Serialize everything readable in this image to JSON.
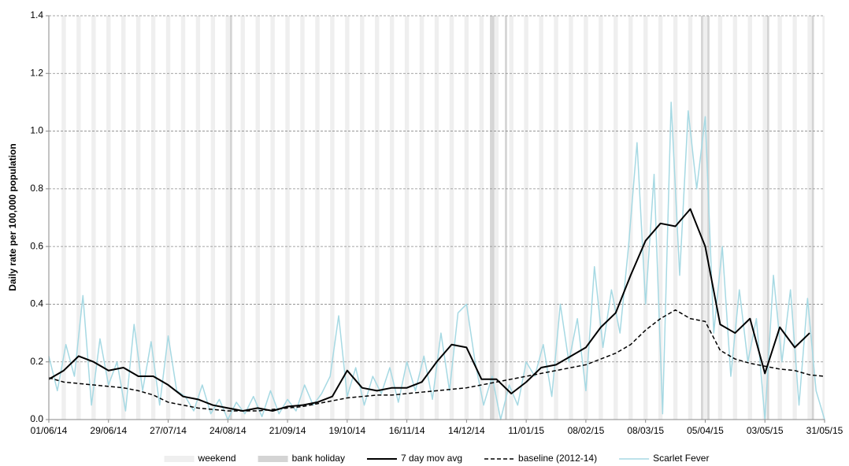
{
  "chart_data": {
    "type": "line",
    "ylabel": "Daily rate per 100,000 population",
    "xlim": [
      0,
      364
    ],
    "xticks": [
      {
        "value": 0,
        "label": "01/06/14"
      },
      {
        "value": 28,
        "label": "29/06/14"
      },
      {
        "value": 56,
        "label": "27/07/14"
      },
      {
        "value": 84,
        "label": "24/08/14"
      },
      {
        "value": 112,
        "label": "21/09/14"
      },
      {
        "value": 140,
        "label": "19/10/14"
      },
      {
        "value": 168,
        "label": "16/11/14"
      },
      {
        "value": 196,
        "label": "14/12/14"
      },
      {
        "value": 224,
        "label": "11/01/15"
      },
      {
        "value": 252,
        "label": "08/02/15"
      },
      {
        "value": 280,
        "label": "08/03/15"
      },
      {
        "value": 308,
        "label": "05/04/15"
      },
      {
        "value": 336,
        "label": "03/05/15"
      },
      {
        "value": 364,
        "label": "31/05/15"
      }
    ],
    "ylim": [
      0,
      1.4
    ],
    "yticks": [
      {
        "value": 0,
        "label": "0.0"
      },
      0.2,
      0.4,
      0.6,
      0.8,
      {
        "value": 1,
        "label": "1.0"
      },
      1.2,
      1.4
    ],
    "grid": true,
    "weekends": {
      "name": "weekend",
      "color": "#efefef",
      "width": 2,
      "x": [
        6,
        13,
        20,
        27,
        34,
        41,
        48,
        55,
        62,
        69,
        76,
        83,
        90,
        97,
        104,
        111,
        118,
        125,
        132,
        139,
        146,
        153,
        160,
        167,
        174,
        181,
        188,
        195,
        202,
        209,
        216,
        223,
        230,
        237,
        244,
        251,
        258,
        265,
        272,
        279,
        286,
        293,
        300,
        307,
        314,
        321,
        328,
        335,
        342,
        349,
        356,
        363
      ]
    },
    "bank_holidays": {
      "name": "bank holiday",
      "color": "#d4d4d4",
      "width": 1,
      "x": [
        85,
        207,
        208,
        214,
        306,
        309,
        337,
        358
      ]
    },
    "series": [
      {
        "name": "7 day mov avg",
        "color": "#000000",
        "width": 2,
        "dash": false,
        "x": [
          0,
          7,
          14,
          21,
          28,
          35,
          42,
          49,
          56,
          63,
          70,
          77,
          84,
          91,
          98,
          105,
          112,
          119,
          126,
          133,
          140,
          147,
          154,
          161,
          168,
          175,
          182,
          189,
          196,
          203,
          210,
          217,
          224,
          231,
          238,
          245,
          252,
          259,
          266,
          273,
          280,
          287,
          294,
          301,
          308,
          315,
          322,
          329,
          336,
          343,
          350,
          357,
          364
        ],
        "values": [
          0.14,
          0.17,
          0.22,
          0.2,
          0.17,
          0.18,
          0.15,
          0.15,
          0.12,
          0.08,
          0.07,
          0.05,
          0.04,
          0.03,
          0.04,
          0.03,
          0.045,
          0.05,
          0.06,
          0.08,
          0.17,
          0.11,
          0.1,
          0.11,
          0.11,
          0.13,
          0.2,
          0.26,
          0.25,
          0.14,
          0.14,
          0.09,
          0.13,
          0.18,
          0.19,
          0.22,
          0.25,
          0.32,
          0.37,
          0.5,
          0.62,
          0.68,
          0.67,
          0.73,
          0.6,
          0.33,
          0.3,
          0.35,
          0.16,
          0.32,
          0.25,
          0.3,
          null
        ]
      },
      {
        "name": "baseline (2012-14)",
        "color": "#000000",
        "width": 1.5,
        "dash": true,
        "x": [
          0,
          7,
          14,
          21,
          28,
          35,
          42,
          49,
          56,
          63,
          70,
          77,
          84,
          91,
          98,
          105,
          112,
          119,
          126,
          133,
          140,
          147,
          154,
          161,
          168,
          175,
          182,
          189,
          196,
          203,
          210,
          217,
          224,
          231,
          238,
          245,
          252,
          259,
          266,
          273,
          280,
          287,
          294,
          301,
          308,
          315,
          322,
          329,
          336,
          343,
          350,
          357,
          364
        ],
        "values": [
          0.145,
          0.13,
          0.125,
          0.12,
          0.115,
          0.11,
          0.1,
          0.085,
          0.06,
          0.05,
          0.04,
          0.035,
          0.03,
          0.03,
          0.03,
          0.035,
          0.04,
          0.045,
          0.055,
          0.065,
          0.075,
          0.08,
          0.085,
          0.085,
          0.09,
          0.095,
          0.1,
          0.105,
          0.11,
          0.12,
          0.13,
          0.14,
          0.15,
          0.16,
          0.17,
          0.18,
          0.19,
          0.21,
          0.23,
          0.26,
          0.31,
          0.35,
          0.38,
          0.35,
          0.34,
          0.24,
          0.21,
          0.195,
          0.185,
          0.175,
          0.17,
          0.155,
          0.15
        ]
      },
      {
        "name": "Scarlet Fever",
        "color": "#a6d9e3",
        "width": 1.5,
        "dash": false,
        "x": [
          0,
          4,
          8,
          12,
          16,
          20,
          24,
          28,
          32,
          36,
          40,
          44,
          48,
          52,
          56,
          60,
          64,
          68,
          72,
          76,
          80,
          84,
          88,
          92,
          96,
          100,
          104,
          108,
          112,
          116,
          120,
          124,
          128,
          132,
          136,
          140,
          144,
          148,
          152,
          156,
          160,
          164,
          168,
          172,
          176,
          180,
          184,
          188,
          192,
          196,
          200,
          204,
          208,
          212,
          216,
          220,
          224,
          228,
          232,
          236,
          240,
          244,
          248,
          252,
          256,
          260,
          264,
          268,
          272,
          276,
          280,
          284,
          288,
          292,
          296,
          300,
          304,
          308,
          312,
          316,
          320,
          324,
          328,
          332,
          336,
          340,
          344,
          348,
          352,
          356,
          360,
          364
        ],
        "values": [
          0.22,
          0.1,
          0.26,
          0.15,
          0.43,
          0.05,
          0.28,
          0.12,
          0.2,
          0.03,
          0.33,
          0.1,
          0.27,
          0.05,
          0.29,
          0.1,
          0.08,
          0.03,
          0.12,
          0.02,
          0.07,
          0.0,
          0.06,
          0.02,
          0.08,
          0.01,
          0.1,
          0.02,
          0.07,
          0.03,
          0.12,
          0.05,
          0.09,
          0.15,
          0.36,
          0.08,
          0.18,
          0.05,
          0.15,
          0.09,
          0.18,
          0.06,
          0.2,
          0.1,
          0.22,
          0.07,
          0.3,
          0.1,
          0.37,
          0.4,
          0.2,
          0.05,
          0.15,
          0.0,
          0.12,
          0.05,
          0.2,
          0.15,
          0.26,
          0.08,
          0.4,
          0.2,
          0.35,
          0.1,
          0.53,
          0.25,
          0.45,
          0.3,
          0.6,
          0.96,
          0.4,
          0.85,
          0.02,
          1.1,
          0.5,
          1.07,
          0.8,
          1.05,
          0.3,
          0.6,
          0.15,
          0.45,
          0.2,
          0.35,
          0.0,
          0.5,
          0.2,
          0.45,
          0.05,
          0.42,
          0.1,
          0.0
        ]
      }
    ],
    "draw_order": [
      2,
      1,
      0
    ]
  }
}
